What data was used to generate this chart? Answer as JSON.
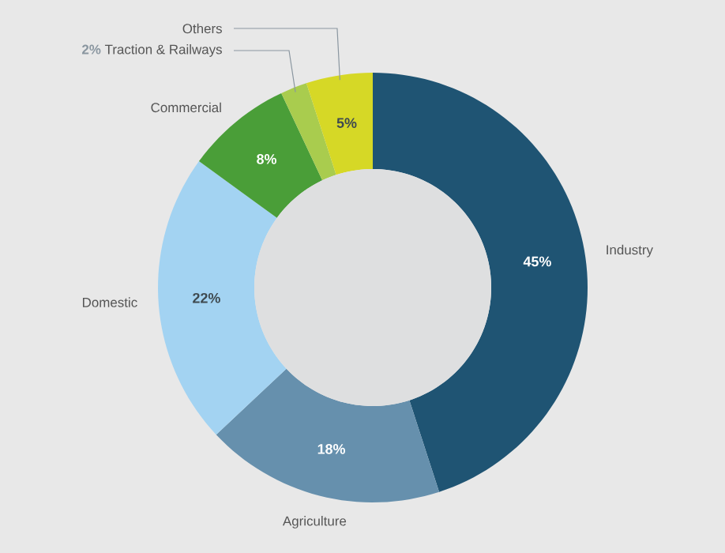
{
  "chart_data": {
    "type": "donut",
    "categories": [
      "Industry",
      "Agriculture",
      "Domestic",
      "Commercial",
      "Traction & Railways",
      "Others"
    ],
    "values": [
      45,
      18,
      22,
      8,
      2,
      5
    ],
    "value_labels": [
      "45%",
      "18%",
      "22%",
      "8%",
      "2%",
      "5%"
    ],
    "colors": [
      "#1f5473",
      "#6690ad",
      "#a3d3f2",
      "#4a9e38",
      "#a9cc4e",
      "#d6d826"
    ]
  }
}
